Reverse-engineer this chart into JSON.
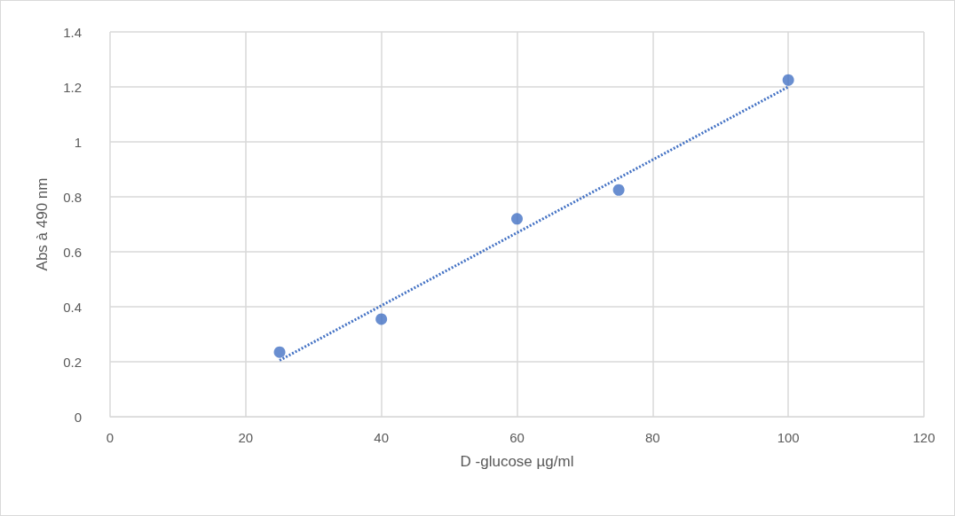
{
  "chart_data": {
    "type": "scatter",
    "xlabel": "D -glucose µg/ml",
    "ylabel": "Abs à 490 nm",
    "xlim": [
      0,
      120
    ],
    "xticks": [
      0,
      20,
      40,
      60,
      80,
      100,
      120
    ],
    "ylim": [
      0,
      1.4
    ],
    "yticks": [
      0,
      0.2,
      0.4,
      0.6,
      0.8,
      1,
      1.2,
      1.4
    ],
    "grid": true,
    "series": [
      {
        "marker": "circle",
        "color": "#4472c4",
        "x": [
          25,
          40,
          60,
          75,
          100
        ],
        "values": [
          0.235,
          0.355,
          0.72,
          0.825,
          1.225
        ]
      },
      {
        "type": "line",
        "marker": "none",
        "line_style": "dotted",
        "color": "#4472c4",
        "x": [
          25,
          100
        ],
        "values": [
          0.205,
          1.2
        ]
      }
    ]
  }
}
